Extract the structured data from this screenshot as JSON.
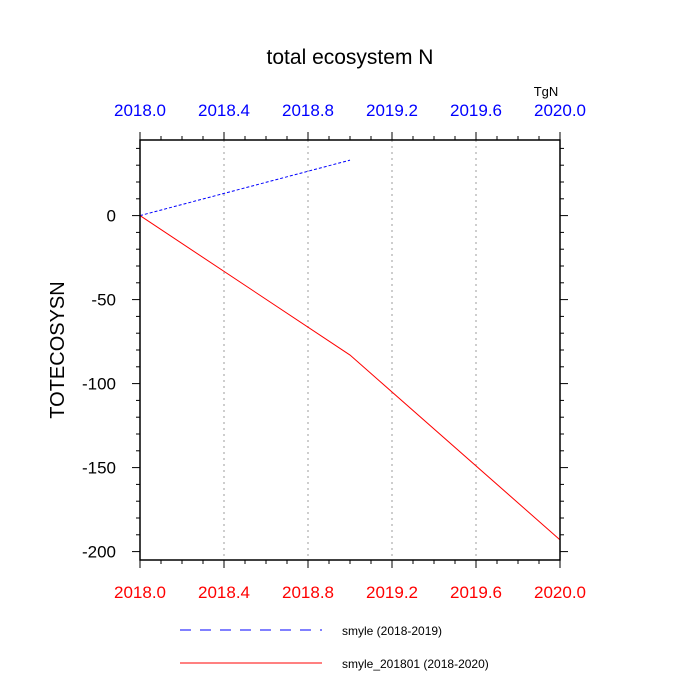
{
  "chart_data": {
    "type": "line",
    "title": "total ecosystem N",
    "ylabel": "TOTECOSYSN",
    "units": "TgN",
    "xlim": [
      2018.0,
      2020.0
    ],
    "ylim": [
      -205,
      45
    ],
    "x_ticks": [
      "2018.0",
      "2018.4",
      "2018.8",
      "2019.2",
      "2019.6",
      "2020.0"
    ],
    "x_tick_values": [
      2018.0,
      2018.4,
      2018.8,
      2019.2,
      2019.6,
      2020.0
    ],
    "y_ticks": [
      "0",
      "-50",
      "-100",
      "-150",
      "-200"
    ],
    "y_tick_values": [
      0,
      -50,
      -100,
      -150,
      -200
    ],
    "top_axis_color": "#0000ff",
    "bottom_axis_color": "#ff0000",
    "grid_vertical": true,
    "legend_placement": "bottom",
    "series": [
      {
        "name": "smyle (2018-2019)",
        "color": "#0000ff",
        "style": "dashed",
        "x": [
          2018.0,
          2019.0
        ],
        "y": [
          0,
          33
        ]
      },
      {
        "name": "smyle_201801 (2018-2020)",
        "color": "#ff0000",
        "style": "solid",
        "x": [
          2018.0,
          2019.0,
          2020.0
        ],
        "y": [
          0,
          -83,
          -193
        ]
      }
    ]
  }
}
